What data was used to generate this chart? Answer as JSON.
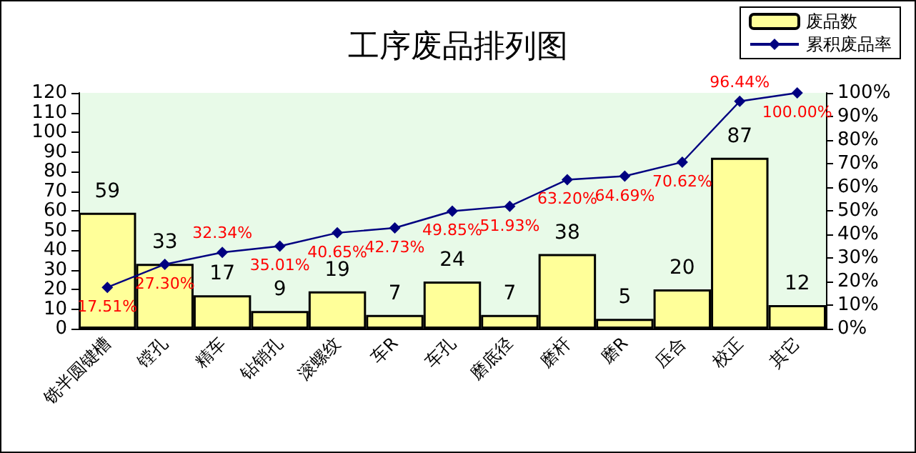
{
  "chart_data": {
    "type": "bar",
    "title": "工序废品排列图",
    "categories": [
      "铣半圆键槽",
      "镗孔",
      "精车",
      "钻销孔",
      "滚螺纹",
      "车R",
      "车孔",
      "磨底径",
      "磨杆",
      "磨R",
      "压合",
      "校正",
      "其它"
    ],
    "series": [
      {
        "name": "废品数",
        "color": "#ffff99",
        "values": [
          59,
          33,
          17,
          9,
          19,
          7,
          24,
          7,
          38,
          5,
          20,
          87,
          12
        ],
        "value_labels": [
          "59",
          "33",
          "17",
          "9",
          "19",
          "7",
          "24",
          "7",
          "38",
          "5",
          "20",
          "87",
          "12"
        ]
      },
      {
        "name": "累积废品率",
        "type": "line",
        "axis": "y2",
        "color": "#000080",
        "marker": "diamond",
        "values": [
          17.51,
          27.3,
          32.34,
          35.01,
          40.65,
          42.73,
          49.85,
          51.93,
          63.2,
          64.69,
          70.62,
          96.44,
          100.0
        ],
        "value_labels": [
          "17.51%",
          "27.30%",
          "32.34%",
          "35.01%",
          "40.65%",
          "42.73%",
          "49.85%",
          "51.93%",
          "63.20%",
          "64.69%",
          "70.62%",
          "96.44%",
          "100.00%"
        ]
      }
    ],
    "ylim": [
      0,
      120
    ],
    "yticks": [
      0,
      10,
      20,
      30,
      40,
      50,
      60,
      70,
      80,
      90,
      100,
      110,
      120
    ],
    "y2lim": [
      0,
      100
    ],
    "y2ticks": [
      {
        "value": 0,
        "label": "0%"
      },
      {
        "value": 10,
        "label": "10%"
      },
      {
        "value": 20,
        "label": "20%"
      },
      {
        "value": 30,
        "label": "30%"
      },
      {
        "value": 40,
        "label": "40%"
      },
      {
        "value": 50,
        "label": "50%"
      },
      {
        "value": 60,
        "label": "60%"
      },
      {
        "value": 70,
        "label": "70%"
      },
      {
        "value": 80,
        "label": "80%"
      },
      {
        "value": 90,
        "label": "90%"
      },
      {
        "value": 100,
        "label": "100%"
      }
    ],
    "grid": false,
    "legend": "top right"
  }
}
